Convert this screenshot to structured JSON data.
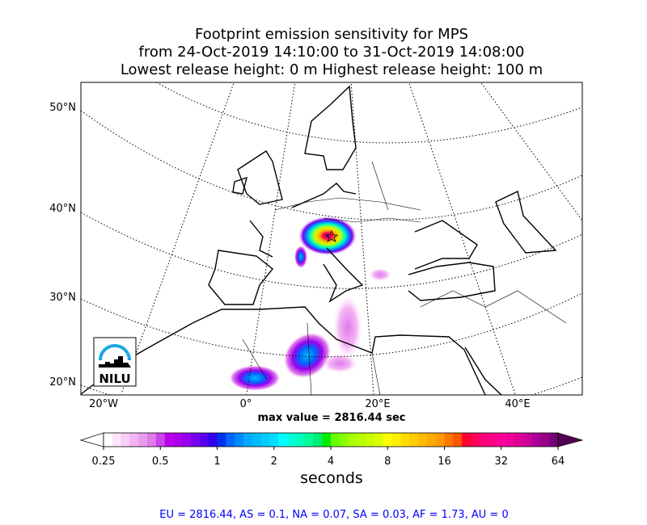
{
  "title": {
    "line1": "Footprint emission sensitivity for MPS",
    "line2": "from 24-Oct-2019 14:10:00 to 31-Oct-2019 14:08:00",
    "line3": "Lowest release height: 0 m      Highest release height: 100 m"
  },
  "map": {
    "lat_labels": [
      "50°N",
      "40°N",
      "30°N",
      "20°N"
    ],
    "lon_labels": [
      "20°W",
      "0°",
      "20°E",
      "40°E"
    ],
    "logo_text": "NILU",
    "logo_color": "#1aa7e6"
  },
  "max_value": "max value = 2816.44 sec",
  "colorbar": {
    "ticks": [
      "0.25",
      "0.5",
      "1",
      "2",
      "4",
      "8",
      "16",
      "32",
      "64"
    ],
    "units": "seconds",
    "under_color": "#ffffff",
    "over_color": "#550055",
    "colors": [
      "#ffffff",
      "#fde6fb",
      "#f9cdf7",
      "#f3b4f3",
      "#eb9bef",
      "#e07ceb",
      "#cc44ee",
      "#bb00ee",
      "#aa00ee",
      "#9900ee",
      "#7700ee",
      "#5500ee",
      "#3300ee",
      "#0033ee",
      "#0066ff",
      "#0088ff",
      "#00aaff",
      "#00bbff",
      "#00ccff",
      "#00ddff",
      "#00ffff",
      "#00ffdd",
      "#00ffbb",
      "#00ff99",
      "#00ee77",
      "#00ee00",
      "#66ff00",
      "#88ff00",
      "#aaff00",
      "#bbff00",
      "#ccff00",
      "#ddff00",
      "#ffff00",
      "#ffee00",
      "#ffdd00",
      "#ffcc00",
      "#ffbb00",
      "#ffaa00",
      "#ff9900",
      "#ff7700",
      "#ff5500",
      "#ff0033",
      "#ff0055",
      "#ff0077",
      "#ff0088",
      "#ff0099",
      "#ee0099",
      "#dd0099",
      "#cc0099",
      "#aa0099",
      "#990088",
      "#770077"
    ]
  },
  "stats": "EU = 2816.44,  AS = 0.1,  NA = 0.07,  SA = 0.03,  AF = 1.73,  AU = 0"
}
